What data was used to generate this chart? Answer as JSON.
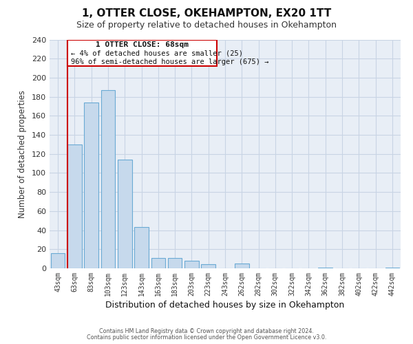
{
  "title": "1, OTTER CLOSE, OKEHAMPTON, EX20 1TT",
  "subtitle": "Size of property relative to detached houses in Okehampton",
  "xlabel": "Distribution of detached houses by size in Okehampton",
  "ylabel": "Number of detached properties",
  "bar_labels": [
    "43sqm",
    "63sqm",
    "83sqm",
    "103sqm",
    "123sqm",
    "143sqm",
    "163sqm",
    "183sqm",
    "203sqm",
    "223sqm",
    "243sqm",
    "262sqm",
    "282sqm",
    "302sqm",
    "322sqm",
    "342sqm",
    "362sqm",
    "382sqm",
    "402sqm",
    "422sqm",
    "442sqm"
  ],
  "bar_values": [
    16,
    130,
    174,
    187,
    114,
    43,
    11,
    11,
    8,
    4,
    0,
    5,
    0,
    0,
    0,
    0,
    1,
    0,
    0,
    0,
    1
  ],
  "bar_color": "#c6d9ec",
  "bar_edge_color": "#6aaad4",
  "ylim": [
    0,
    240
  ],
  "yticks": [
    0,
    20,
    40,
    60,
    80,
    100,
    120,
    140,
    160,
    180,
    200,
    220,
    240
  ],
  "property_line_color": "#cc0000",
  "annotation_title": "1 OTTER CLOSE: 68sqm",
  "annotation_line1": "← 4% of detached houses are smaller (25)",
  "annotation_line2": "96% of semi-detached houses are larger (675) →",
  "annotation_box_color": "#ffffff",
  "annotation_box_edge": "#cc0000",
  "footer_line1": "Contains HM Land Registry data © Crown copyright and database right 2024.",
  "footer_line2": "Contains public sector information licensed under the Open Government Licence v3.0.",
  "background_color": "#ffffff",
  "plot_bg_color": "#e8eef6",
  "grid_color": "#c8d4e4"
}
